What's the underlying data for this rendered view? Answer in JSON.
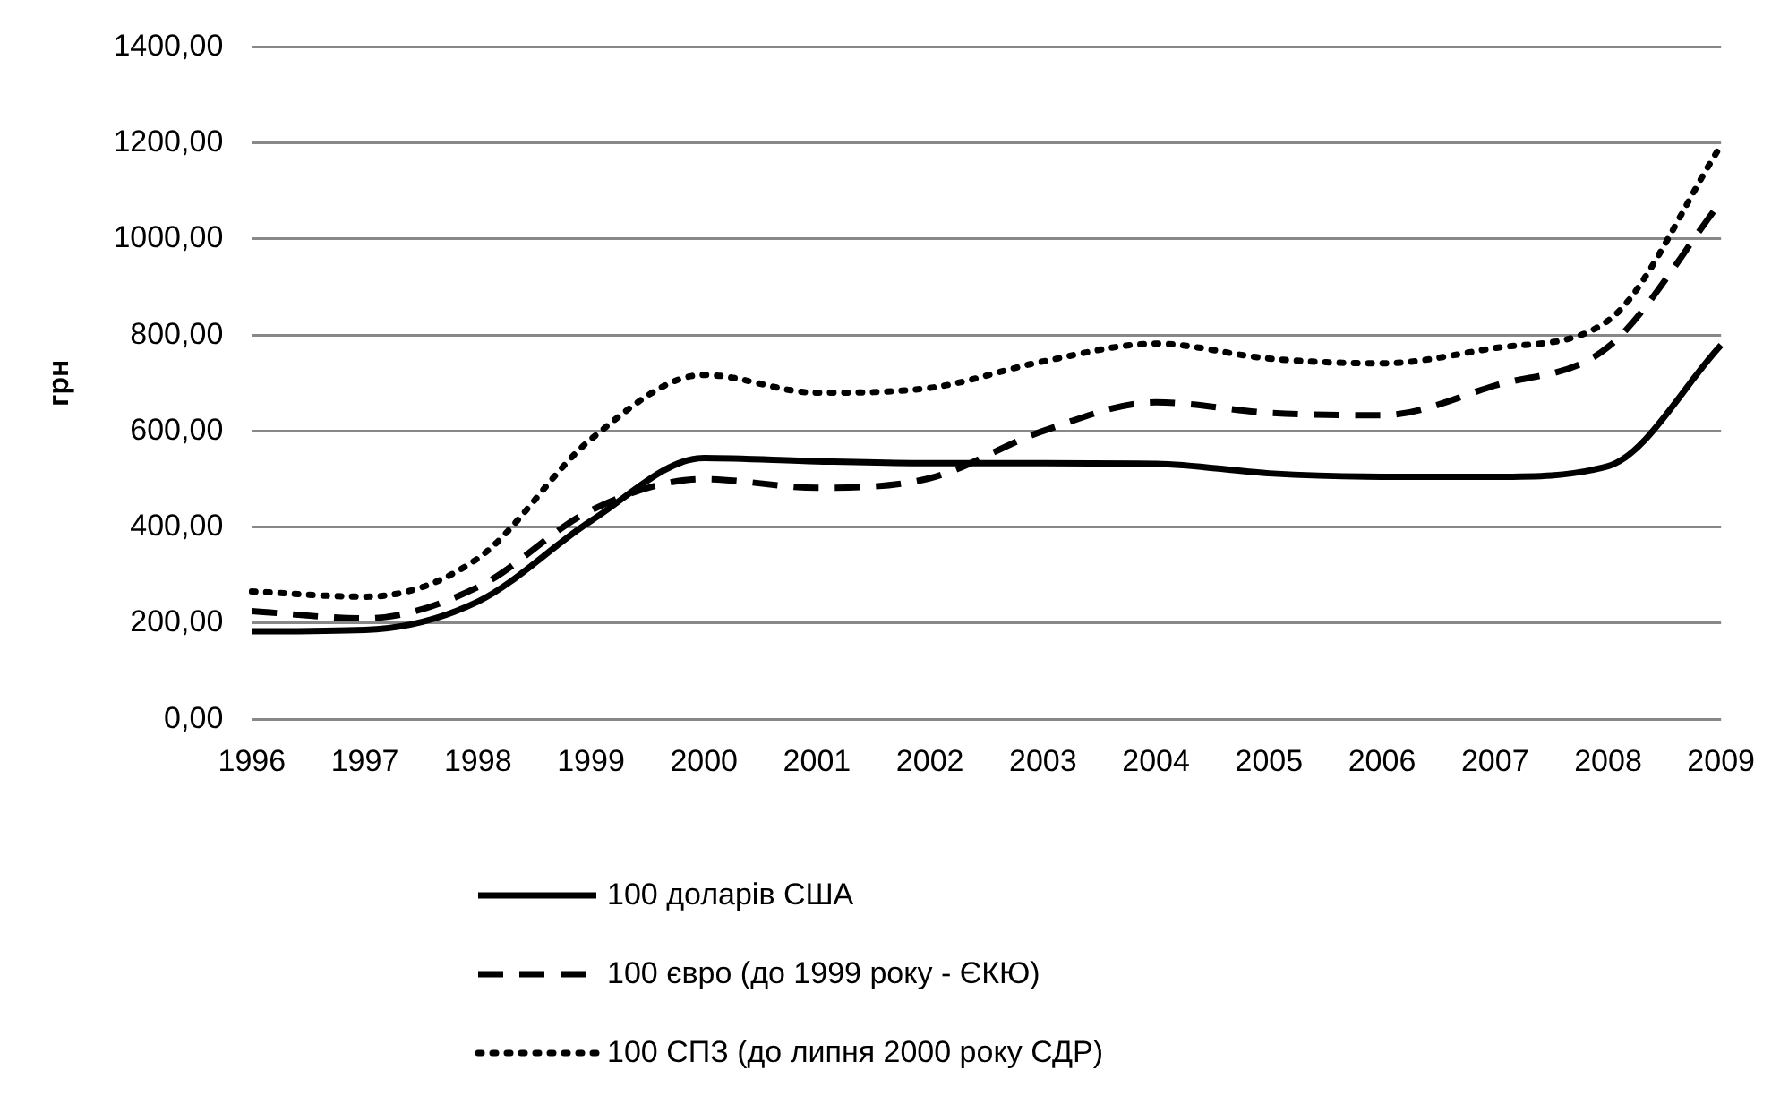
{
  "chart_data": {
    "type": "line",
    "ylabel": "грн",
    "categories": [
      "1996",
      "1997",
      "1998",
      "1999",
      "2000",
      "2001",
      "2002",
      "2003",
      "2004",
      "2005",
      "2006",
      "2007",
      "2008",
      "2009"
    ],
    "series": [
      {
        "name": "100 доларів США",
        "color": "#000000",
        "line_style": "solid",
        "values": [
          183,
          186,
          245,
          413,
          544,
          537,
          533,
          533,
          532,
          512,
          505,
          505,
          527,
          779
        ]
      },
      {
        "name": "100 євро (до 1999 року - ЄКЮ)",
        "color": "#000000",
        "line_style": "dashed",
        "values": [
          225,
          210,
          275,
          435,
          500,
          482,
          502,
          600,
          660,
          638,
          633,
          695,
          775,
          1078
        ]
      },
      {
        "name": "100 СПЗ (до липня 2000 року СДР)",
        "color": "#000000",
        "line_style": "dotted",
        "values": [
          266,
          255,
          335,
          583,
          717,
          680,
          690,
          745,
          782,
          751,
          741,
          773,
          830,
          1195
        ]
      }
    ],
    "ylim": [
      0,
      1400
    ],
    "yticks": [
      {
        "value": 0,
        "label": "0,00"
      },
      {
        "value": 200,
        "label": "200,00"
      },
      {
        "value": 400,
        "label": "400,00"
      },
      {
        "value": 600,
        "label": "600,00"
      },
      {
        "value": 800,
        "label": "800,00"
      },
      {
        "value": 1000,
        "label": "1000,00"
      },
      {
        "value": 1200,
        "label": "1200,00"
      },
      {
        "value": 1400,
        "label": "1400,00"
      }
    ],
    "grid": "y",
    "legend": "bottom",
    "marker": "none"
  }
}
